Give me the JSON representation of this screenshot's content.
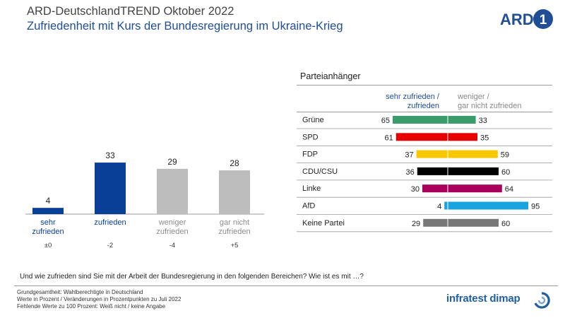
{
  "header": {
    "title": "ARD-DeutschlandTREND Oktober 2022",
    "subtitle": "Zufriedenheit mit Kurs der Bundesregierung im Ukraine-Krieg"
  },
  "logo_text": "ARD",
  "colors": {
    "blue": "#0a3f98",
    "grey": "#bdbdbd",
    "title_blue": "#1f4e96",
    "Grüne": "#3a9c6a",
    "SPD": "#e60000",
    "FDP": "#f7c800",
    "CDU/CSU": "#000000",
    "Linke": "#a8005c",
    "AfD": "#19a3df",
    "Keine Partei": "#777777"
  },
  "chart_data": [
    {
      "type": "bar",
      "categories": [
        "sehr\nzufrieden",
        "zufrieden",
        "weniger\nzufrieden",
        "gar nicht\nzufrieden"
      ],
      "values": [
        4,
        33,
        29,
        28
      ],
      "changes": [
        "±0",
        "-2",
        "-4",
        "+5"
      ],
      "bar_colors": [
        "#0a3f98",
        "#0a3f98",
        "#bdbdbd",
        "#bdbdbd"
      ],
      "label_colors": [
        "#0a3f98",
        "#0a3f98",
        "#8c8c8c",
        "#8c8c8c"
      ]
    },
    {
      "type": "bar",
      "title": "Parteianhänger",
      "orientation": "horizontal-diverging",
      "series": [
        {
          "name": "sehr zufrieden / zufrieden",
          "values": [
            65,
            61,
            37,
            36,
            30,
            4,
            29
          ]
        },
        {
          "name": "weniger / gar nicht zufrieden",
          "values": [
            33,
            35,
            59,
            60,
            64,
            95,
            60
          ]
        }
      ],
      "categories": [
        "Grüne",
        "SPD",
        "FDP",
        "CDU/CSU",
        "Linke",
        "AfD",
        "Keine Partei"
      ]
    }
  ],
  "column_heads": {
    "left": "sehr zufrieden /\nzufrieden",
    "right": "weniger /\ngar nicht zufrieden"
  },
  "question": "Und wie zufrieden sind Sie mit der Arbeit der Bundesregierung in den folgenden Bereichen? Wie ist es mit …?",
  "footnotes": [
    "Grundgesamtheit:  Wahlberechtigte in Deutschland",
    "Werte in Prozent / Veränderungen  in Prozentpunkten zu Juli 2022",
    "Fehlende  Werte zu 100 Prozent: Weiß nicht / keine Angabe"
  ],
  "infratest_text": "infratest dimap"
}
